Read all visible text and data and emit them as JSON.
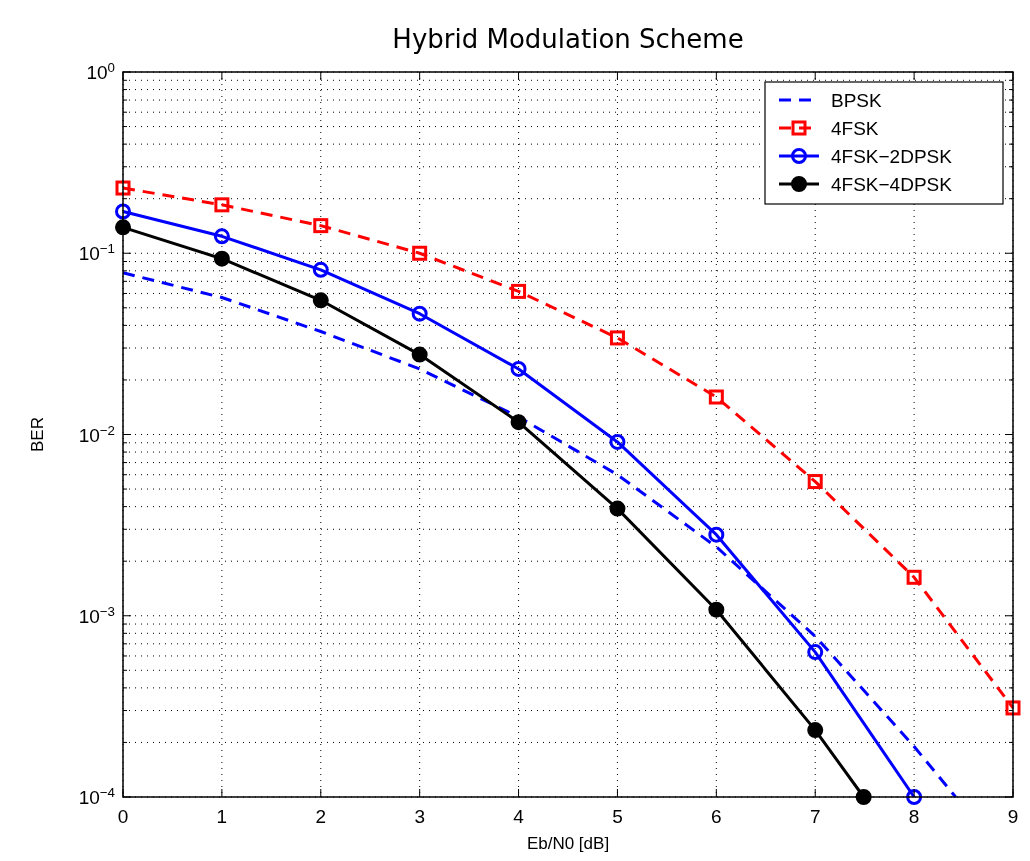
{
  "chart_data": {
    "type": "line",
    "title": "Hybrid Modulation Scheme",
    "xlabel": "Eb/N0 [dB]",
    "ylabel": "BER",
    "log": "y",
    "grid": true,
    "legend": "top right",
    "xlim": [
      0,
      9
    ],
    "xticks": [
      0,
      1,
      2,
      3,
      4,
      5,
      6,
      7,
      8,
      9
    ],
    "ylim": [
      0.0001,
      1
    ],
    "yticks": [
      {
        "value": 0.0001,
        "label": "10$^{−4}$"
      },
      {
        "value": 0.001,
        "label": "10$^{−3}$"
      },
      {
        "value": 0.01,
        "label": "10$^{−2}$"
      },
      {
        "value": 0.1,
        "label": "10$^{−1}$"
      },
      {
        "value": 1,
        "label": "10$^{0}$"
      }
    ],
    "series": [
      {
        "name": "BPSK",
        "color": "#0000ff",
        "line_style": "dashed",
        "marker": "none",
        "x": [
          0,
          1,
          2,
          3,
          4,
          5,
          6,
          7,
          8,
          8.42
        ],
        "values": [
          0.078,
          0.057,
          0.037,
          0.023,
          0.0125,
          0.006,
          0.0024,
          0.00077,
          0.00019,
          0.0001
        ]
      },
      {
        "name": "4FSK",
        "color": "#ff0000",
        "line_style": "dashed",
        "marker": "square",
        "x": [
          0,
          1,
          2,
          3,
          4,
          5,
          6,
          7,
          8,
          9
        ],
        "values": [
          0.229,
          0.185,
          0.142,
          0.1,
          0.0616,
          0.0341,
          0.0161,
          0.0055,
          0.00163,
          0.00031
        ]
      },
      {
        "name": "4FSK−2DPSK",
        "color": "#0000ff",
        "line_style": "solid",
        "marker": "circle",
        "x": [
          0,
          1,
          2,
          3,
          4,
          5,
          6,
          7,
          8
        ],
        "values": [
          0.17,
          0.124,
          0.081,
          0.0464,
          0.023,
          0.0091,
          0.0028,
          0.00063,
          0.0001
        ]
      },
      {
        "name": "4FSK−4DPSK",
        "color": "#000000",
        "line_style": "solid",
        "marker": "circle",
        "x": [
          0,
          1,
          2,
          3,
          4,
          5,
          6,
          7,
          7.49
        ],
        "values": [
          0.139,
          0.0933,
          0.055,
          0.0276,
          0.0117,
          0.0039,
          0.00108,
          0.000234,
          0.0001
        ]
      }
    ]
  }
}
